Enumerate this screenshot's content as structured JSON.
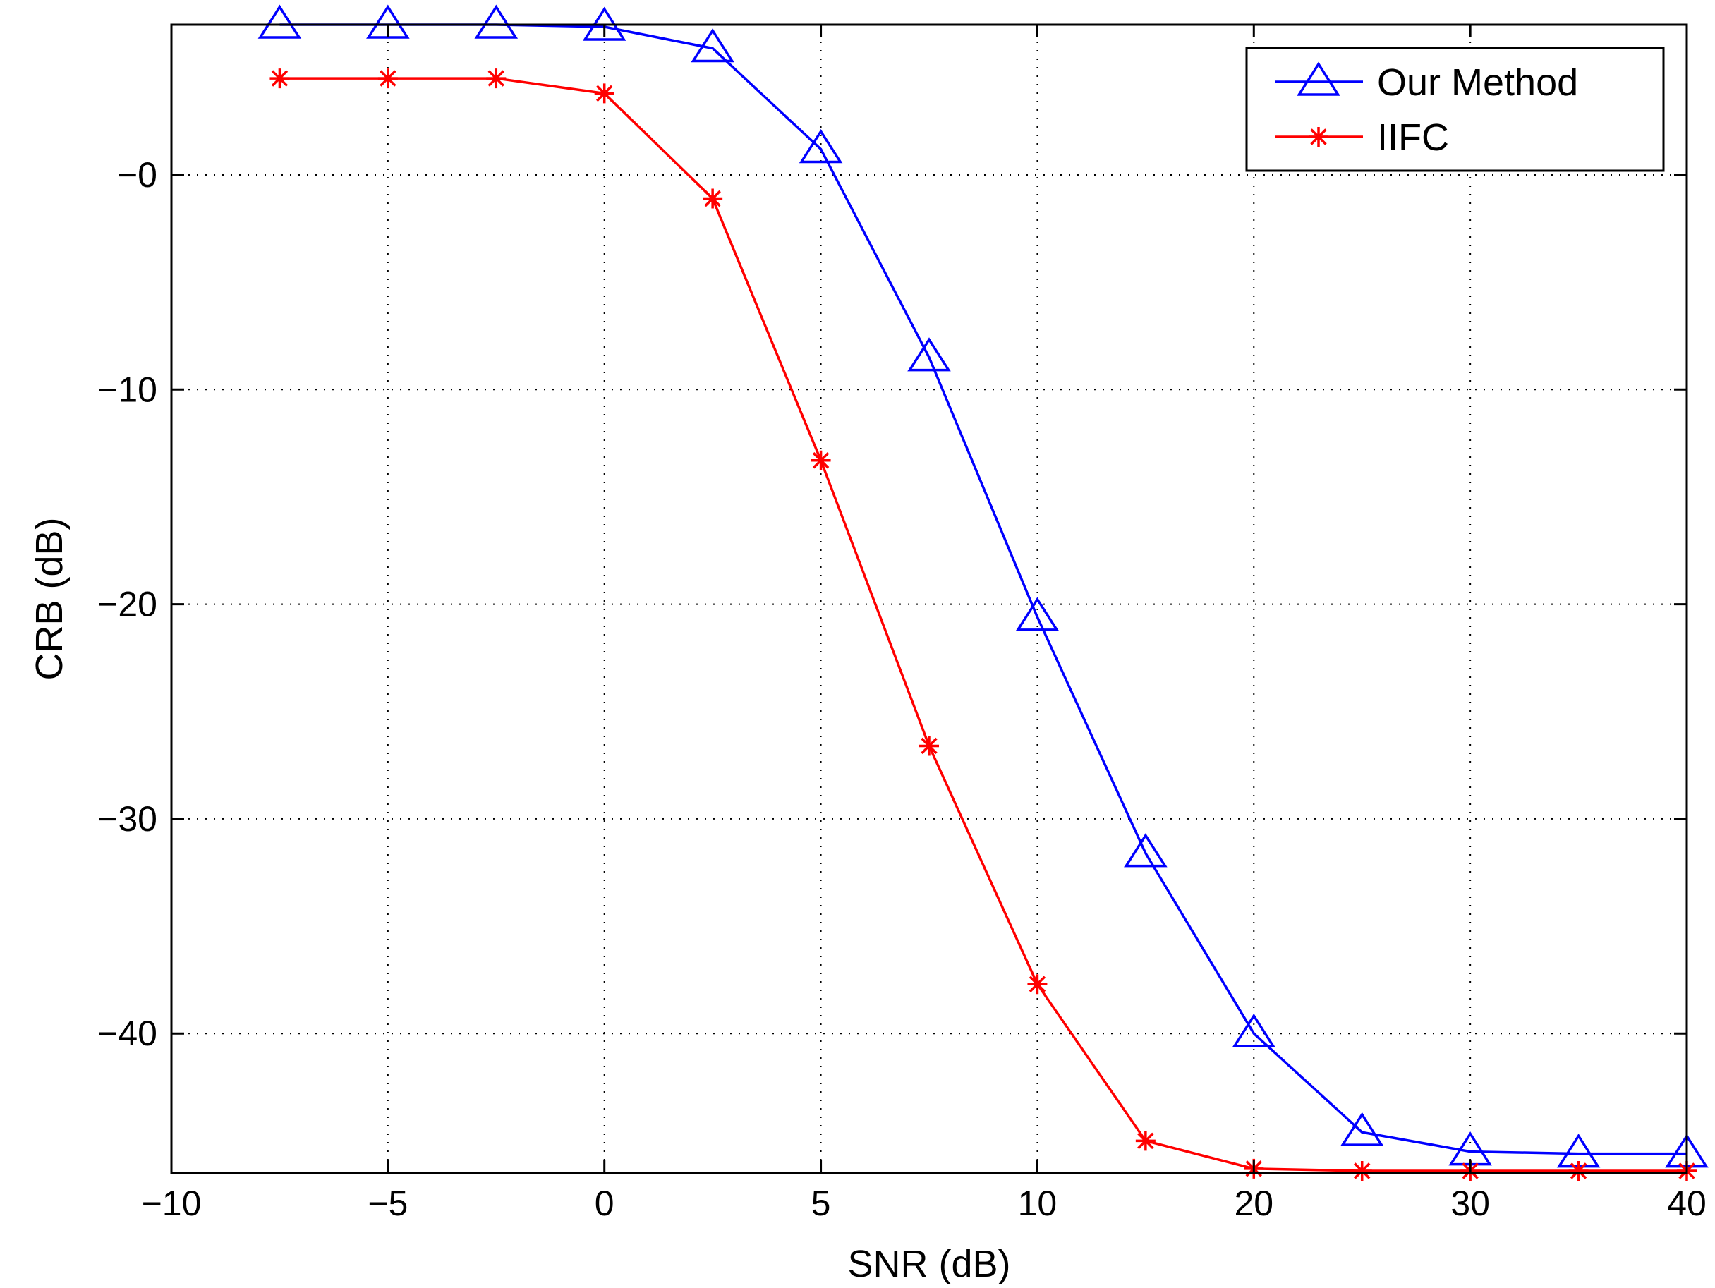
{
  "chart_data": {
    "type": "line",
    "title": "",
    "xlabel": "SNR (dB)",
    "ylabel": "CRB (dB)",
    "x_tick_labels": [
      "−10",
      "−5",
      "0",
      "5",
      "10",
      "20",
      "30",
      "40"
    ],
    "y_tick_labels": [
      "−0",
      "−10",
      "−20",
      "−30",
      "−40"
    ],
    "y_ticks": [
      0,
      -10,
      -20,
      -30,
      -40
    ],
    "ylim": [
      -46.5,
      7
    ],
    "grid": true,
    "legend_position": "top-right",
    "x": [
      -7.5,
      -5,
      -2.5,
      0,
      2.5,
      5,
      7.5,
      10,
      15,
      20,
      25,
      30,
      35,
      40
    ],
    "series": [
      {
        "name": "Our Method",
        "color": "#0000ff",
        "marker": "triangle",
        "values": [
          7,
          7,
          7,
          6.9,
          5.9,
          1.2,
          -8.5,
          -20.6,
          -31.6,
          -40,
          -44.6,
          -45.5,
          -45.6,
          -45.6
        ]
      },
      {
        "name": "IIFC",
        "color": "#ff0000",
        "marker": "asterisk",
        "values": [
          4.5,
          4.5,
          4.5,
          3.8,
          -1.1,
          -13.3,
          -26.6,
          -37.7,
          -45,
          -46.3,
          -46.4,
          -46.4,
          -46.4,
          -46.4
        ]
      }
    ]
  }
}
